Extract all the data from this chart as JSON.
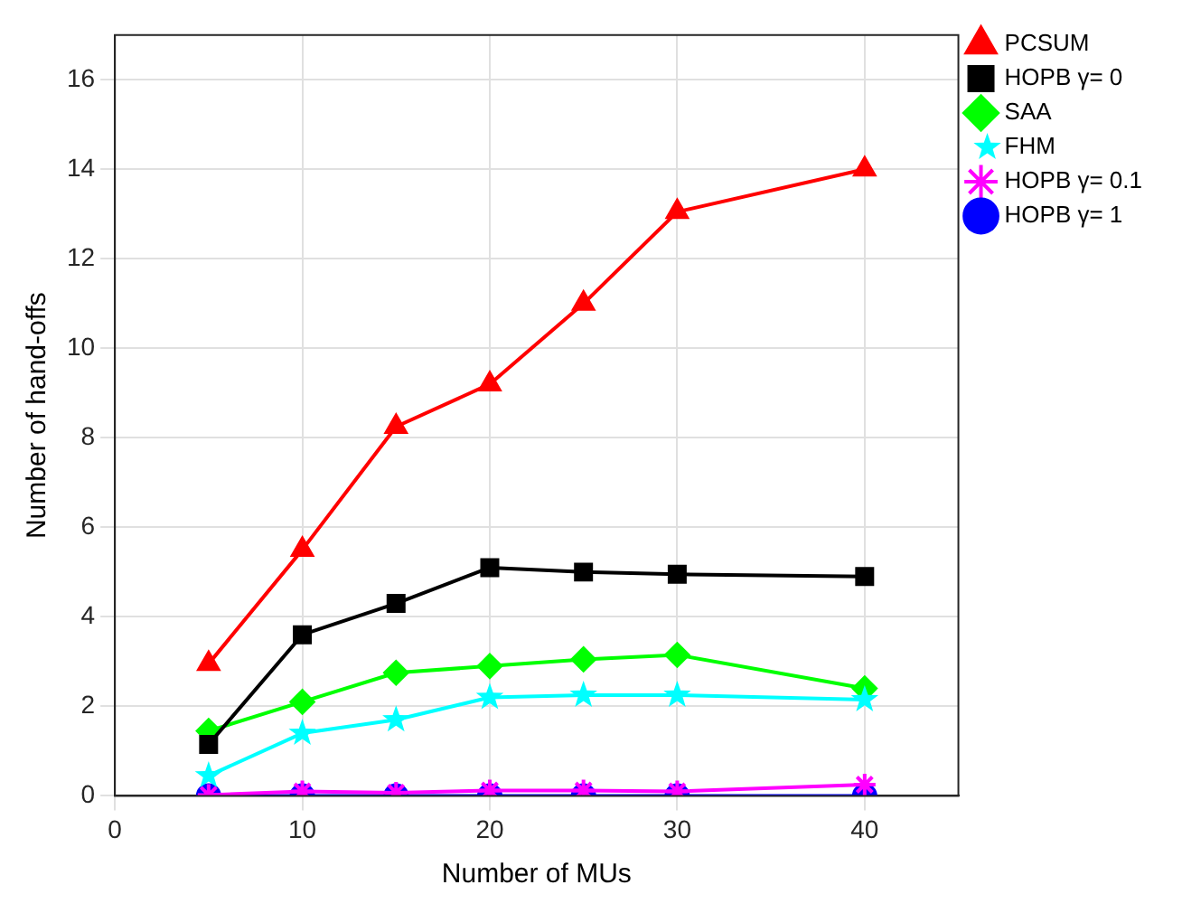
{
  "chart_data": {
    "type": "line",
    "xlabel": "Number of MUs",
    "ylabel": "Number of hand-offs",
    "x": [
      5,
      10,
      15,
      20,
      25,
      30,
      40
    ],
    "series": [
      {
        "name": "PCSUM",
        "color": "#ff0000",
        "marker": "triangle",
        "values": [
          2.95,
          5.5,
          8.25,
          9.2,
          11,
          13.05,
          14
        ]
      },
      {
        "name": "HOPB γ= 0",
        "color": "#000000",
        "marker": "square",
        "values": [
          1.15,
          3.6,
          4.3,
          5.1,
          5.0,
          4.95,
          4.9
        ]
      },
      {
        "name": "SAA",
        "color": "#00ff00",
        "marker": "diamond",
        "values": [
          1.45,
          2.1,
          2.75,
          2.9,
          3.05,
          3.15,
          2.4
        ]
      },
      {
        "name": "FHM",
        "color": "#00ffff",
        "marker": "star",
        "values": [
          0.45,
          1.4,
          1.7,
          2.2,
          2.25,
          2.25,
          2.15
        ]
      },
      {
        "name": "HOPB γ= 0.1",
        "color": "#ff00ff",
        "marker": "cross",
        "values": [
          0.02,
          0.1,
          0.07,
          0.12,
          0.12,
          0.1,
          0.25
        ]
      },
      {
        "name": "HOPB γ= 1",
        "color": "#0000ff",
        "marker": "circle",
        "values": [
          0,
          0,
          0,
          0,
          0,
          0,
          0
        ]
      }
    ],
    "xlim": [
      0,
      45
    ],
    "xticks": [
      0,
      10,
      20,
      30,
      40
    ],
    "ylim": [
      0,
      17
    ],
    "yticks": [
      0,
      2,
      4,
      6,
      8,
      10,
      12,
      14,
      16
    ],
    "grid": true,
    "legend": "top right",
    "line_style": "solid"
  }
}
